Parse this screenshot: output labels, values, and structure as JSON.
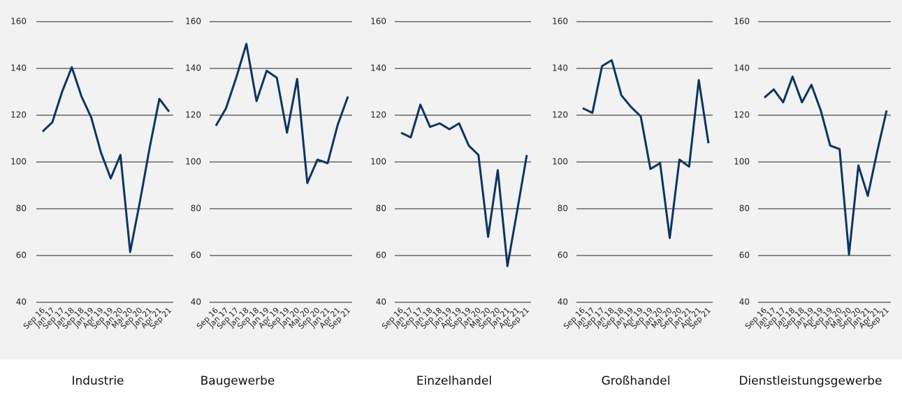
{
  "chart_data": [
    {
      "type": "line",
      "title": "Industrie",
      "color": "#0d3461",
      "categories": [
        "Sep 16",
        "Jan 17",
        "Sep 17",
        "Jan 18",
        "Sep 18",
        "Jan 19",
        "Apr 19",
        "Sep 19",
        "Jan 20",
        "Mai 20",
        "Sep 20",
        "Jan 21",
        "Apr 21",
        "Sep 21"
      ],
      "values": [
        113,
        117,
        130,
        140.5,
        128,
        119,
        104,
        93,
        103,
        61.5,
        83,
        106,
        127,
        121.5
      ],
      "ylim": [
        40,
        160
      ],
      "yticks": [
        40,
        60,
        80,
        100,
        120,
        140,
        160
      ],
      "grid": true
    },
    {
      "type": "line",
      "title": "Baugewerbe",
      "color": "#0d3461",
      "categories": [
        "Sep 16",
        "Jan 17",
        "Sep 17",
        "Jan 18",
        "Sep 18",
        "Jan 19",
        "Apr 19",
        "Sep 19",
        "Jan 20",
        "Mai 20",
        "Sep 20",
        "Jan 21",
        "Apr 21",
        "Sep 21"
      ],
      "values": [
        115.5,
        123,
        136,
        150.5,
        126,
        139,
        136,
        112.5,
        135.5,
        91,
        101,
        99.5,
        116,
        128
      ],
      "ylim": [
        40,
        160
      ],
      "yticks": [
        40,
        60,
        80,
        100,
        120,
        140,
        160
      ],
      "grid": true
    },
    {
      "type": "line",
      "title": "Einzelhandel",
      "color": "#0d3461",
      "categories": [
        "Sep 16",
        "Jan 17",
        "Sep 17",
        "Jan 18",
        "Sep 18",
        "Jan 19",
        "Apr 19",
        "Sep 19",
        "Jan 20",
        "Mai 20",
        "Sep 20",
        "Jan 21",
        "Apr 21",
        "Sep 21"
      ],
      "values": [
        112.5,
        110.5,
        124.5,
        115,
        116.5,
        114,
        116.5,
        107,
        103,
        68,
        96.5,
        55.5,
        79,
        103
      ],
      "ylim": [
        40,
        160
      ],
      "yticks": [
        40,
        60,
        80,
        100,
        120,
        140,
        160
      ],
      "grid": true
    },
    {
      "type": "line",
      "title": "Großhandel",
      "color": "#0d3461",
      "categories": [
        "Sep 16",
        "Jan 17",
        "Sep 17",
        "Jan 18",
        "Sep 18",
        "Jan 19",
        "Apr 19",
        "Sep 19",
        "Jan 20",
        "Mai 20",
        "Sep 20",
        "Jan 21",
        "Apr 21",
        "Sep 21"
      ],
      "values": [
        123,
        121,
        141,
        143.5,
        128.5,
        123.5,
        119.5,
        97,
        99.5,
        67.5,
        101,
        98,
        135,
        108
      ],
      "ylim": [
        40,
        160
      ],
      "yticks": [
        40,
        60,
        80,
        100,
        120,
        140,
        160
      ],
      "grid": true
    },
    {
      "type": "line",
      "title": "Dienstleistungsgewerbe",
      "color": "#0d3461",
      "categories": [
        "Sep 16",
        "Jan 17",
        "Sep 17",
        "Jan 18",
        "Sep 18",
        "Jan 19",
        "Apr 19",
        "Sep 19",
        "Jan 20",
        "Mai 20",
        "Sep 20",
        "Jan 21",
        "Apr 21",
        "Sep 21"
      ],
      "values": [
        127.5,
        131,
        125.5,
        136.5,
        125.5,
        133,
        122,
        107,
        105.5,
        60.5,
        98.5,
        85.5,
        104.5,
        122
      ],
      "ylim": [
        40,
        160
      ],
      "yticks": [
        40,
        60,
        80,
        100,
        120,
        140,
        160
      ],
      "grid": true
    }
  ]
}
